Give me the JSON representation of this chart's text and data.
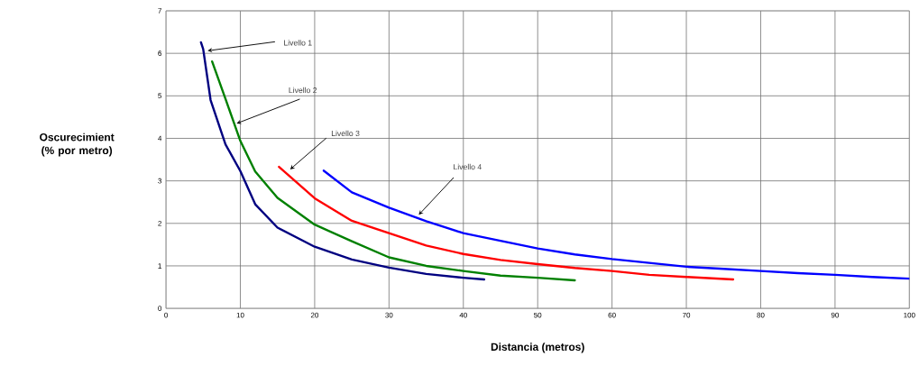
{
  "chart_data": {
    "type": "line",
    "xlabel": "Distancia (metros)",
    "ylabel": "Oscurecimient (% por metro)",
    "xlim": [
      0,
      100
    ],
    "ylim": [
      0,
      7
    ],
    "xticks": [
      0,
      10,
      20,
      30,
      40,
      50,
      60,
      70,
      80,
      90,
      100
    ],
    "yticks": [
      0,
      1,
      2,
      3,
      4,
      5,
      6,
      7
    ],
    "grid": true,
    "marker": "none",
    "line_style": "solid",
    "series": [
      {
        "color": "#000080",
        "x": [
          4.7,
          5,
          6,
          8,
          10,
          12,
          15,
          20,
          25,
          30,
          35,
          40,
          42.8
        ],
        "values": [
          6.26,
          6.1,
          4.9,
          3.86,
          3.23,
          2.45,
          1.9,
          1.45,
          1.15,
          0.96,
          0.81,
          0.72,
          0.68
        ]
      },
      {
        "color": "#008000",
        "x": [
          6.2,
          8,
          10,
          12,
          15,
          20,
          25,
          30,
          35,
          40,
          45,
          50,
          55
        ],
        "values": [
          5.81,
          4.93,
          3.94,
          3.22,
          2.6,
          1.97,
          1.58,
          1.2,
          1.0,
          0.88,
          0.77,
          0.72,
          0.66
        ]
      },
      {
        "color": "#ff0000",
        "x": [
          15.2,
          20,
          25,
          30,
          35,
          40,
          45,
          50,
          55,
          60,
          65,
          70,
          76.3
        ],
        "values": [
          3.33,
          2.59,
          2.06,
          1.77,
          1.48,
          1.28,
          1.14,
          1.04,
          0.95,
          0.88,
          0.79,
          0.74,
          0.68
        ]
      },
      {
        "color": "#0000ff",
        "x": [
          21.2,
          25,
          30,
          35,
          40,
          45,
          50,
          55,
          60,
          65,
          70,
          75,
          80,
          85,
          90,
          95,
          100
        ],
        "values": [
          3.24,
          2.73,
          2.37,
          2.05,
          1.77,
          1.59,
          1.41,
          1.27,
          1.16,
          1.07,
          0.98,
          0.93,
          0.88,
          0.83,
          0.79,
          0.74,
          0.7
        ]
      }
    ],
    "annotations": [
      {
        "text": "Livello 1",
        "x": 5.6,
        "y": 6.06
      },
      {
        "text": "Livello 2",
        "x": 9.5,
        "y": 4.35
      },
      {
        "text": "Livello 3",
        "x": 16.7,
        "y": 3.27
      },
      {
        "text": "Livello 4",
        "x": 34,
        "y": 2.2
      }
    ]
  }
}
